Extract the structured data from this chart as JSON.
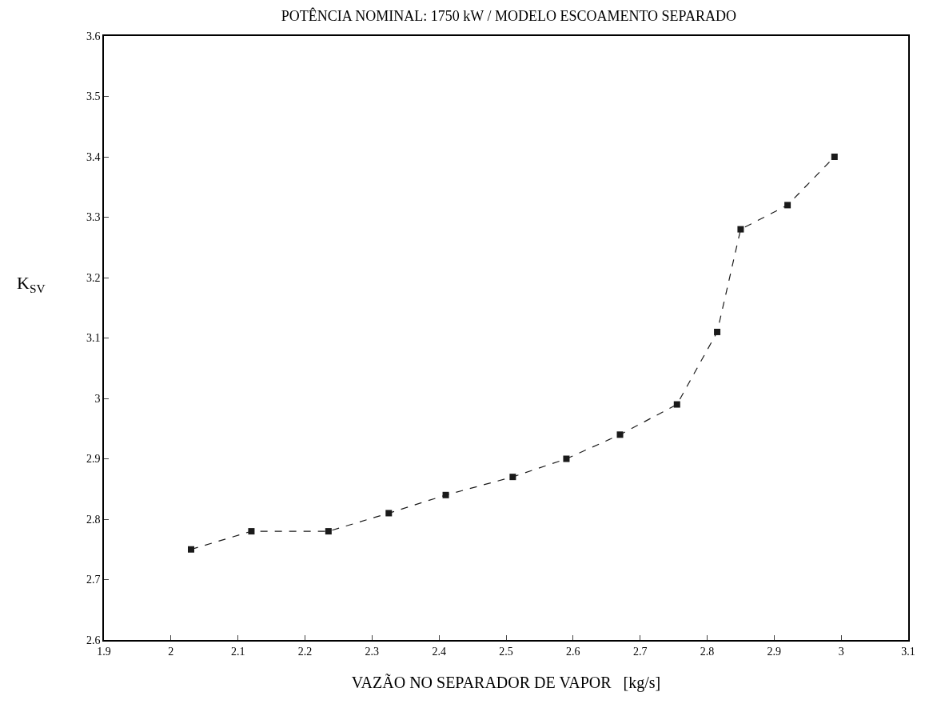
{
  "chart_data": {
    "type": "line",
    "title": "POTÊNCIA NOMINAL: 1750 kW / MODELO ESCOAMENTO SEPARADO",
    "xlabel": "VAZÃO NO SEPARADOR DE VAPOR   [kg/s]",
    "ylabel": "K$_{SV}$",
    "x": [
      2.03,
      2.12,
      2.235,
      2.325,
      2.41,
      2.51,
      2.59,
      2.67,
      2.755,
      2.815,
      2.85,
      2.92,
      2.99
    ],
    "series": [
      {
        "color": "#1a1a1a",
        "values": [
          2.75,
          2.78,
          2.78,
          2.81,
          2.84,
          2.87,
          2.9,
          2.94,
          2.99,
          3.11,
          3.28,
          3.32,
          3.4
        ]
      }
    ],
    "xlim": [
      1.9,
      3.1
    ],
    "xticks": [
      1.9,
      2,
      2.1,
      2.2,
      2.3,
      2.4,
      2.5,
      2.6,
      2.7,
      2.8,
      2.9,
      3,
      3.1
    ],
    "ylim": [
      2.6,
      3.6
    ],
    "yticks": [
      2.6,
      2.7,
      2.8,
      2.9,
      3,
      3.1,
      3.2,
      3.3,
      3.4,
      3.5,
      3.6
    ],
    "marker": "square",
    "line_style": "dashed"
  }
}
